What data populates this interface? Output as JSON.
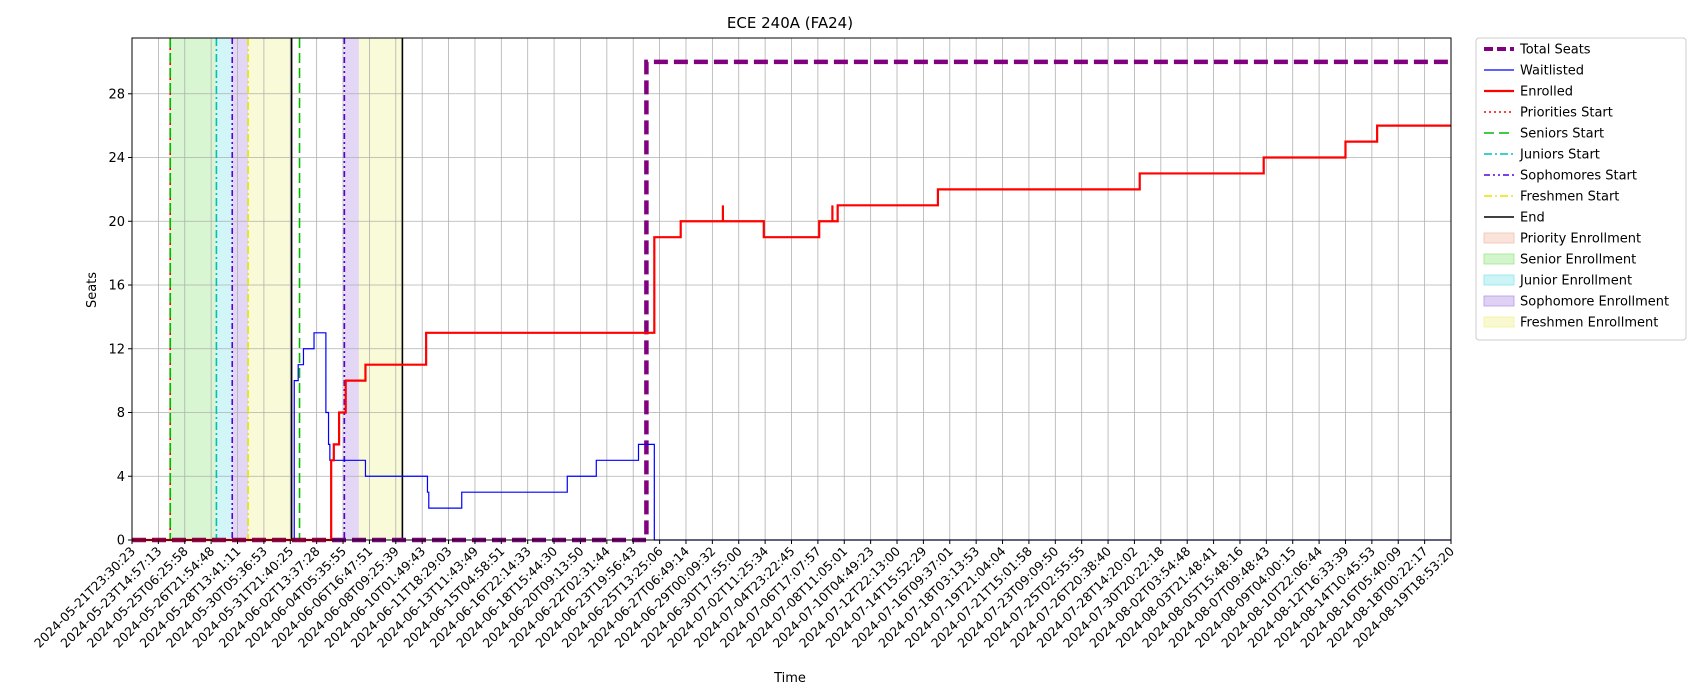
{
  "chart_data": {
    "type": "line",
    "title": "ECE 240A (FA24)",
    "xlabel": "Time",
    "ylabel": "Seats",
    "ylim": [
      0,
      31.5
    ],
    "y_ticks": [
      0,
      4,
      8,
      12,
      16,
      20,
      24,
      28
    ],
    "grid": true,
    "legend_position": "outside-right",
    "x_tick_labels": [
      "2024-05-21T23:30:23",
      "2024-05-23T14:57:13",
      "2024-05-25T06:25:58",
      "2024-05-26T21:54:48",
      "2024-05-28T13:41:11",
      "2024-05-30T05:36:53",
      "2024-05-31T21:40:25",
      "2024-06-02T13:37:28",
      "2024-06-04T05:35:55",
      "2024-06-06T16:47:51",
      "2024-06-08T09:25:39",
      "2024-06-10T01:49:43",
      "2024-06-11T18:29:03",
      "2024-06-13T11:43:49",
      "2024-06-15T04:58:51",
      "2024-06-16T22:14:33",
      "2024-06-18T15:44:30",
      "2024-06-20T09:13:50",
      "2024-06-22T02:31:44",
      "2024-06-23T19:56:43",
      "2024-06-25T13:25:06",
      "2024-06-27T06:49:14",
      "2024-06-29T00:09:32",
      "2024-06-30T17:55:00",
      "2024-07-02T11:25:34",
      "2024-07-04T23:22:45",
      "2024-07-06T17:07:57",
      "2024-07-08T11:05:01",
      "2024-07-10T04:49:23",
      "2024-07-12T22:13:00",
      "2024-07-14T15:52:29",
      "2024-07-16T09:37:01",
      "2024-07-18T03:13:53",
      "2024-07-19T21:04:04",
      "2024-07-21T15:01:58",
      "2024-07-23T09:09:50",
      "2024-07-25T02:55:55",
      "2024-07-26T20:38:40",
      "2024-07-28T14:20:02",
      "2024-07-30T20:22:18",
      "2024-08-02T03:54:48",
      "2024-08-03T21:48:41",
      "2024-08-05T15:48:16",
      "2024-08-07T09:48:43",
      "2024-08-09T04:00:15",
      "2024-08-10T22:06:44",
      "2024-08-12T16:33:39",
      "2024-08-14T10:45:53",
      "2024-08-16T05:40:09",
      "2024-08-18T00:22:17",
      "2024-08-19T18:53:20"
    ],
    "x_range_index": [
      0,
      50
    ],
    "series": [
      {
        "name": "Total Seats",
        "color": "#800080",
        "style": "dashed",
        "x": [
          0,
          19.5,
          19.5,
          50
        ],
        "y": [
          0,
          0,
          30,
          30
        ]
      },
      {
        "name": "Waitlisted",
        "color": "#0000ff",
        "style": "solid",
        "x": [
          0,
          6.15,
          6.15,
          6.3,
          6.3,
          6.5,
          6.5,
          6.9,
          6.9,
          7.35,
          7.35,
          7.45,
          7.45,
          7.5,
          7.5,
          7.6,
          7.6,
          8.85,
          8.85,
          11.2,
          11.2,
          11.25,
          11.25,
          12.5,
          12.5,
          16.5,
          16.5,
          17.6,
          17.6,
          19.2,
          19.2,
          19.8,
          19.8,
          50
        ],
        "y": [
          0,
          0,
          10,
          10,
          11,
          11,
          12,
          12,
          13,
          13,
          8,
          8,
          6,
          6,
          5,
          5,
          5,
          5,
          4,
          4,
          3,
          3,
          2,
          2,
          3,
          3,
          4,
          4,
          5,
          5,
          6,
          6,
          0,
          0
        ]
      },
      {
        "name": "Enrolled",
        "color": "#ff0000",
        "style": "solid",
        "x": [
          0,
          7.55,
          7.55,
          7.65,
          7.65,
          7.85,
          7.85,
          8.1,
          8.1,
          8.85,
          8.85,
          11.15,
          11.15,
          19.8,
          19.8,
          20.8,
          20.8,
          22.4,
          22.4,
          22.4,
          22.4,
          23.95,
          23.95,
          26.05,
          26.05,
          26.55,
          26.55,
          26.55,
          26.55,
          26.75,
          26.75,
          30.55,
          30.55,
          38.2,
          38.2,
          42.9,
          42.9,
          46,
          46,
          47.2,
          47.2,
          50
        ],
        "y": [
          0,
          0,
          5,
          5,
          6,
          6,
          8,
          8,
          10,
          10,
          11,
          11,
          13,
          13,
          19,
          19,
          20,
          20,
          21,
          20,
          20,
          20,
          19,
          19,
          20,
          20,
          21,
          20,
          20,
          20,
          21,
          21,
          22,
          22,
          23,
          23,
          24,
          24,
          25,
          25,
          26,
          26
        ]
      }
    ],
    "start_lines": [
      {
        "name": "Priorities Start",
        "color": "#ff0000",
        "style": "dotted",
        "x": 1.45
      },
      {
        "name": "Seniors Start",
        "color": "#00bb00",
        "style": "dashed",
        "x": 1.45
      },
      {
        "name": "Seniors Start",
        "color": "#00bb00",
        "style": "dashed",
        "x": 6.35
      },
      {
        "name": "Juniors Start",
        "color": "#00bfbf",
        "style": "dashdot",
        "x": 3.2
      },
      {
        "name": "Sophomores Start",
        "color": "#5500dd",
        "style": "dashdotdot",
        "x": 3.8
      },
      {
        "name": "Sophomores Start",
        "color": "#5500dd",
        "style": "dashdotdot",
        "x": 8.05
      },
      {
        "name": "Freshmen Start",
        "color": "#e5e500",
        "style": "dashdot",
        "x": 4.4
      },
      {
        "name": "End",
        "color": "#000000",
        "style": "solid",
        "x": 6.05
      },
      {
        "name": "End",
        "color": "#000000",
        "style": "solid",
        "x": 10.25
      }
    ],
    "enrollment_periods": [
      {
        "name": "Priority Enrollment",
        "color": "#f4c0b0",
        "x0": 1.4,
        "x1": 1.45
      },
      {
        "name": "Senior Enrollment",
        "color": "#9ce98c",
        "x0": 1.45,
        "x1": 3.2
      },
      {
        "name": "Junior Enrollment",
        "color": "#8fe6ee",
        "x0": 3.2,
        "x1": 3.8
      },
      {
        "name": "Sophomore Enrollment",
        "color": "#b89ae6",
        "x0": 3.8,
        "x1": 4.4
      },
      {
        "name": "Freshmen Enrollment",
        "color": "#f1f29a",
        "x0": 4.4,
        "x1": 6.05
      },
      {
        "name": "Sophomore Enrollment",
        "color": "#b89ae6",
        "x0": 8.05,
        "x1": 8.6
      },
      {
        "name": "Freshmen Enrollment",
        "color": "#f1f29a",
        "x0": 8.6,
        "x1": 10.25
      }
    ],
    "legend": [
      {
        "label": "Total Seats",
        "kind": "line",
        "color": "#800080",
        "style": "dashed",
        "width": 4
      },
      {
        "label": "Waitlisted",
        "kind": "line",
        "color": "#0000ff",
        "style": "solid",
        "width": 1.2
      },
      {
        "label": "Enrolled",
        "kind": "line",
        "color": "#ff0000",
        "style": "solid",
        "width": 2.2
      },
      {
        "label": "Priorities Start",
        "kind": "line",
        "color": "#ff0000",
        "style": "dotted",
        "width": 1.4
      },
      {
        "label": "Seniors Start",
        "kind": "line",
        "color": "#00bb00",
        "style": "dashed",
        "width": 1.4
      },
      {
        "label": "Juniors Start",
        "kind": "line",
        "color": "#00bfbf",
        "style": "dashdot",
        "width": 1.4
      },
      {
        "label": "Sophomores Start",
        "kind": "line",
        "color": "#5500dd",
        "style": "dashdotdot",
        "width": 1.6
      },
      {
        "label": "Freshmen Start",
        "kind": "line",
        "color": "#e5e500",
        "style": "dashdot",
        "width": 1.4
      },
      {
        "label": "End",
        "kind": "line",
        "color": "#000000",
        "style": "solid",
        "width": 1.6
      },
      {
        "label": "Priority Enrollment",
        "kind": "patch",
        "color": "#f4c0b0"
      },
      {
        "label": "Senior Enrollment",
        "kind": "patch",
        "color": "#9ce98c"
      },
      {
        "label": "Junior Enrollment",
        "kind": "patch",
        "color": "#8fe6ee"
      },
      {
        "label": "Sophomore Enrollment",
        "kind": "patch",
        "color": "#b89ae6"
      },
      {
        "label": "Freshmen Enrollment",
        "kind": "patch",
        "color": "#f1f29a"
      }
    ]
  }
}
